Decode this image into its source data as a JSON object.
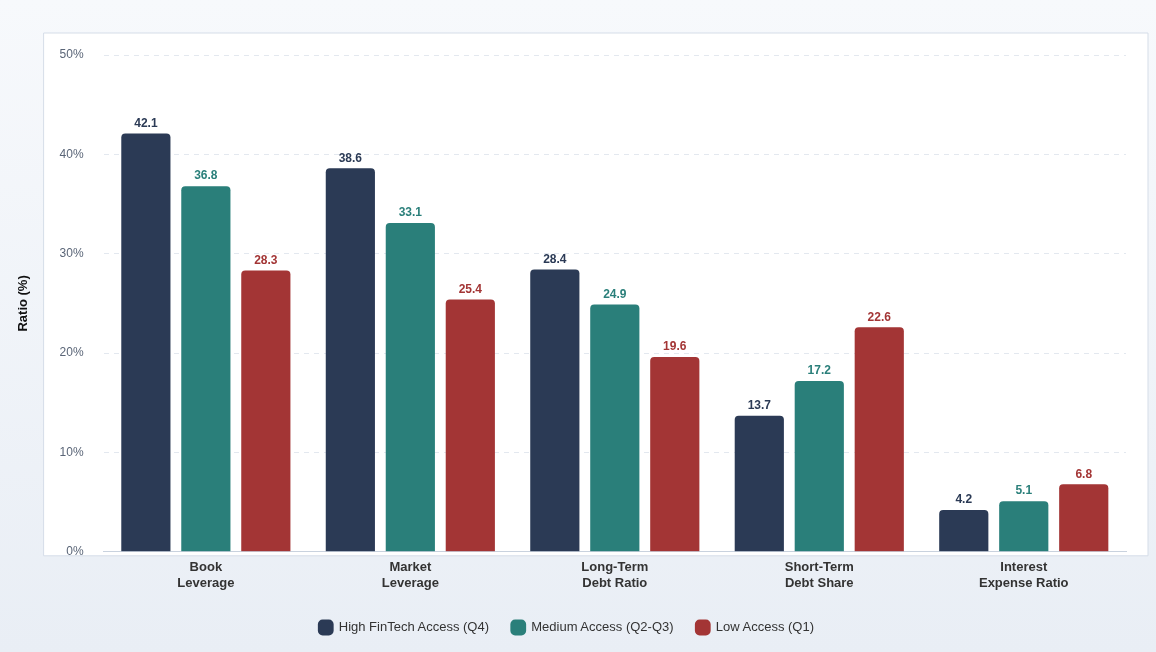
{
  "chart_data": {
    "type": "bar",
    "ylabel": "Ratio (%)",
    "categories": [
      "Book Leverage",
      "Market Leverage",
      "Long-Term Debt Ratio",
      "Short-Term Debt Share",
      "Interest Expense Ratio"
    ],
    "series": [
      {
        "name": "High FinTech Access (Q4)",
        "color": "#2b3a55",
        "values": [
          42.1,
          38.6,
          28.4,
          13.7,
          4.2
        ]
      },
      {
        "name": "Medium Access (Q2-Q3)",
        "color": "#2a7f7a",
        "values": [
          36.8,
          33.1,
          24.9,
          17.2,
          5.1
        ]
      },
      {
        "name": "Low Access (Q1)",
        "color": "#a33535",
        "values": [
          28.3,
          25.4,
          19.6,
          22.6,
          6.8
        ]
      }
    ],
    "ylim": [
      0,
      50
    ],
    "yticks": [
      {
        "value": 0,
        "label": "0%"
      },
      {
        "value": 10,
        "label": "10%"
      },
      {
        "value": 20,
        "label": "20%"
      },
      {
        "value": 30,
        "label": "30%"
      },
      {
        "value": 40,
        "label": "40%"
      },
      {
        "value": 50,
        "label": "50%"
      }
    ],
    "grid": "y",
    "legend": "bottom",
    "data_labels": true
  }
}
